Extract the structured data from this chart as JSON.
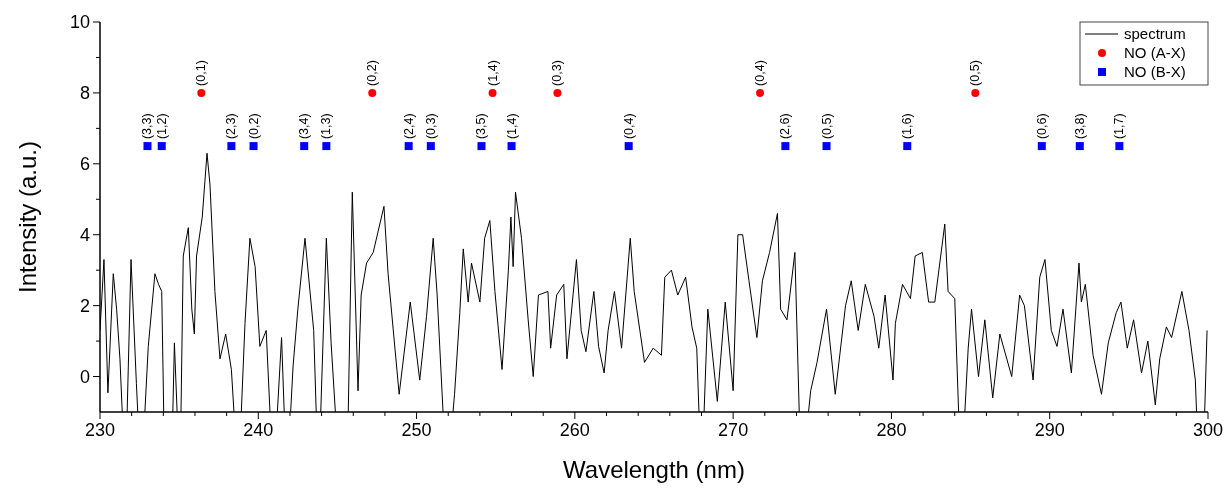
{
  "chart_data": {
    "type": "line",
    "xlabel": "Wavelength (nm)",
    "ylabel": "Intensity (a.u.)",
    "xlim": [
      230,
      300
    ],
    "ylim": [
      -1,
      10
    ],
    "xticks": [
      230,
      {
        "value": 232,
        "label": null
      },
      {
        "value": 234,
        "label": null
      },
      {
        "value": 236,
        "label": null
      },
      {
        "value": 238,
        "label": null
      },
      240,
      {
        "value": 242,
        "label": null
      },
      {
        "value": 244,
        "label": null
      },
      {
        "value": 246,
        "label": null
      },
      {
        "value": 248,
        "label": null
      },
      250,
      {
        "value": 252,
        "label": null
      },
      {
        "value": 254,
        "label": null
      },
      {
        "value": 256,
        "label": null
      },
      {
        "value": 258,
        "label": null
      },
      260,
      {
        "value": 262,
        "label": null
      },
      {
        "value": 264,
        "label": null
      },
      {
        "value": 266,
        "label": null
      },
      {
        "value": 268,
        "label": null
      },
      270,
      {
        "value": 272,
        "label": null
      },
      {
        "value": 274,
        "label": null
      },
      {
        "value": 276,
        "label": null
      },
      {
        "value": 278,
        "label": null
      },
      280,
      {
        "value": 282,
        "label": null
      },
      {
        "value": 284,
        "label": null
      },
      {
        "value": 286,
        "label": null
      },
      {
        "value": 288,
        "label": null
      },
      290,
      {
        "value": 292,
        "label": null
      },
      {
        "value": 294,
        "label": null
      },
      {
        "value": 296,
        "label": null
      },
      {
        "value": 298,
        "label": null
      },
      300
    ],
    "yticks": [
      0,
      {
        "value": 1,
        "label": null
      },
      2,
      {
        "value": 3,
        "label": null
      },
      4,
      {
        "value": 5,
        "label": null
      },
      6,
      {
        "value": 7,
        "label": null
      },
      8,
      {
        "value": 9,
        "label": null
      },
      10
    ],
    "grid": false,
    "legend": "top right",
    "series": [
      {
        "name": "spectrum",
        "color": "#000000",
        "marker": "none",
        "line_style": "solid",
        "x": [
          230.0,
          230.25,
          230.5,
          230.84,
          231.05,
          231.26,
          231.6,
          231.96,
          232.3,
          232.6,
          233.05,
          233.47,
          233.7,
          233.9,
          234.1,
          234.5,
          234.7,
          235.05,
          235.26,
          235.58,
          235.8,
          235.96,
          236.1,
          236.46,
          236.76,
          236.95,
          237.26,
          237.58,
          237.94,
          238.3,
          238.74,
          239.16,
          239.47,
          239.8,
          240.1,
          240.5,
          240.95,
          241.47,
          241.8,
          242.2,
          242.5,
          242.95,
          243.5,
          243.8,
          244.3,
          244.6,
          245.15,
          245.6,
          245.94,
          246.3,
          246.5,
          246.84,
          247.26,
          247.94,
          248.2,
          248.9,
          249.6,
          250.2,
          250.63,
          251.05,
          251.3,
          251.9,
          252.4,
          252.73,
          252.95,
          253.26,
          253.47,
          254.0,
          254.3,
          254.63,
          254.95,
          255.4,
          255.8,
          255.96,
          256.1,
          256.25,
          256.63,
          257.05,
          257.37,
          257.7,
          258.3,
          258.47,
          258.85,
          259.3,
          259.5,
          260.1,
          260.4,
          260.7,
          261.2,
          261.5,
          261.85,
          262.1,
          262.5,
          262.95,
          263.5,
          263.75,
          264.4,
          264.95,
          265.47,
          265.68,
          266.1,
          266.5,
          267.0,
          267.4,
          267.7,
          268.0,
          268.4,
          269.0,
          269.5,
          270.0,
          270.3,
          270.6,
          271.0,
          271.5,
          271.85,
          272.3,
          272.8,
          273.0,
          273.4,
          273.9,
          274.3,
          274.9,
          275.3,
          275.9,
          276.45,
          277.1,
          277.46,
          277.9,
          278.35,
          278.9,
          279.2,
          279.6,
          280.1,
          280.25,
          280.7,
          281.2,
          281.5,
          281.95,
          282.35,
          282.74,
          283.37,
          283.58,
          284.0,
          284.4,
          284.85,
          285.06,
          285.5,
          285.9,
          286.4,
          286.85,
          287.6,
          288.1,
          288.4,
          288.95,
          289.37,
          289.7,
          290.1,
          290.46,
          290.84,
          291.37,
          291.85,
          292.0,
          292.25,
          292.74,
          293.27,
          293.7,
          294.2,
          294.5,
          294.9,
          295.3,
          295.8,
          296.2,
          296.67,
          296.95,
          297.37,
          297.7,
          298.35,
          298.8,
          299.2,
          299.45,
          299.66,
          299.94
        ],
        "values": [
          1.3,
          3.3,
          -0.46,
          2.9,
          1.9,
          0.5,
          null,
          3.3,
          -0.2,
          null,
          0.85,
          2.9,
          2.6,
          2.4,
          null,
          null,
          0.95,
          null,
          3.4,
          4.2,
          1.9,
          1.2,
          3.4,
          4.5,
          6.3,
          5.4,
          2.4,
          0.5,
          1.2,
          0.2,
          null,
          1.5,
          3.9,
          3.1,
          0.85,
          1.3,
          null,
          1.1,
          null,
          0.3,
          1.9,
          3.9,
          1.3,
          null,
          3.9,
          0.95,
          null,
          null,
          5.2,
          -0.4,
          2.3,
          3.2,
          3.5,
          4.8,
          2.9,
          -0.5,
          2.1,
          -0.1,
          1.7,
          3.9,
          2.3,
          null,
          -0.5,
          1.8,
          3.6,
          2.1,
          3.2,
          2.1,
          3.9,
          4.4,
          2.4,
          0.2,
          3.0,
          4.5,
          3.1,
          5.2,
          3.9,
          1.6,
          0.0,
          2.3,
          2.4,
          0.8,
          2.3,
          2.6,
          0.5,
          3.3,
          1.3,
          0.7,
          2.4,
          0.85,
          0.1,
          1.3,
          2.4,
          0.8,
          3.9,
          2.4,
          0.4,
          0.8,
          0.6,
          2.8,
          3.0,
          2.3,
          2.8,
          1.4,
          0.8,
          null,
          1.9,
          -0.7,
          2.1,
          -0.4,
          4.0,
          4.0,
          2.7,
          1.1,
          2.7,
          3.5,
          4.6,
          1.9,
          1.6,
          3.5,
          null,
          -0.4,
          0.4,
          1.9,
          -0.5,
          2.0,
          2.7,
          1.3,
          2.6,
          1.7,
          0.8,
          2.3,
          -0.1,
          1.5,
          2.6,
          2.2,
          3.4,
          3.5,
          2.1,
          2.1,
          4.3,
          2.4,
          2.2,
          null,
          0.8,
          1.9,
          0.0,
          1.6,
          -0.6,
          1.2,
          0.0,
          2.3,
          2.0,
          -0.1,
          2.8,
          3.3,
          1.3,
          0.85,
          1.9,
          0.1,
          3.2,
          2.1,
          2.6,
          0.6,
          -0.5,
          0.95,
          1.8,
          2.1,
          0.8,
          1.6,
          0.1,
          1.0,
          -0.8,
          0.5,
          1.4,
          1.1,
          2.4,
          1.3,
          -0.1,
          null,
          null,
          1.3
        ]
      },
      {
        "name": "NO (A-X)",
        "type": "scatter",
        "color": "#ff0000",
        "marker": "circle",
        "x": [
          236.4,
          247.2,
          254.8,
          258.9,
          271.7,
          285.3
        ],
        "values": [
          8,
          8,
          8,
          8,
          8,
          8
        ]
      },
      {
        "name": "NO (B-X)",
        "type": "scatter",
        "color": "#0000ff",
        "marker": "square",
        "x": [
          233.0,
          233.9,
          238.3,
          239.7,
          242.9,
          244.3,
          249.5,
          250.9,
          254.1,
          256.0,
          263.4,
          273.3,
          275.9,
          281.0,
          289.5,
          291.9,
          294.4
        ],
        "values": [
          6.5,
          6.5,
          6.5,
          6.5,
          6.5,
          6.5,
          6.5,
          6.5,
          6.5,
          6.5,
          6.5,
          6.5,
          6.5,
          6.5,
          6.5,
          6.5,
          6.5
        ]
      }
    ],
    "annotations": [
      {
        "text": "(0,1)",
        "x": 236.4,
        "y": 8
      },
      {
        "text": "(0,2)",
        "x": 247.2,
        "y": 8
      },
      {
        "text": "(1,4)",
        "x": 254.8,
        "y": 8
      },
      {
        "text": "(0,3)",
        "x": 258.9,
        "y": 8
      },
      {
        "text": "(0,4)",
        "x": 271.7,
        "y": 8
      },
      {
        "text": "(0,5)",
        "x": 285.3,
        "y": 8
      },
      {
        "text": "(3,3)",
        "x": 233.0,
        "y": 6.5
      },
      {
        "text": "(1,2)",
        "x": 233.9,
        "y": 6.5
      },
      {
        "text": "(2,3)",
        "x": 238.3,
        "y": 6.5
      },
      {
        "text": "(0,2)",
        "x": 239.7,
        "y": 6.5
      },
      {
        "text": "(3,4)",
        "x": 242.9,
        "y": 6.5
      },
      {
        "text": "(1,3)",
        "x": 244.3,
        "y": 6.5
      },
      {
        "text": "(2,4)",
        "x": 249.5,
        "y": 6.5
      },
      {
        "text": "(0,3)",
        "x": 250.9,
        "y": 6.5
      },
      {
        "text": "(3,5)",
        "x": 254.1,
        "y": 6.5
      },
      {
        "text": "(1,4)",
        "x": 256.0,
        "y": 6.5
      },
      {
        "text": "(0,4)",
        "x": 263.4,
        "y": 6.5
      },
      {
        "text": "(2,6)",
        "x": 273.3,
        "y": 6.5
      },
      {
        "text": "(0,5)",
        "x": 275.9,
        "y": 6.5
      },
      {
        "text": "(1,6)",
        "x": 281.0,
        "y": 6.5
      },
      {
        "text": "(0,6)",
        "x": 289.5,
        "y": 6.5
      },
      {
        "text": "(3,8)",
        "x": 291.9,
        "y": 6.5
      },
      {
        "text": "(1,7)",
        "x": 294.4,
        "y": 6.5
      }
    ]
  }
}
